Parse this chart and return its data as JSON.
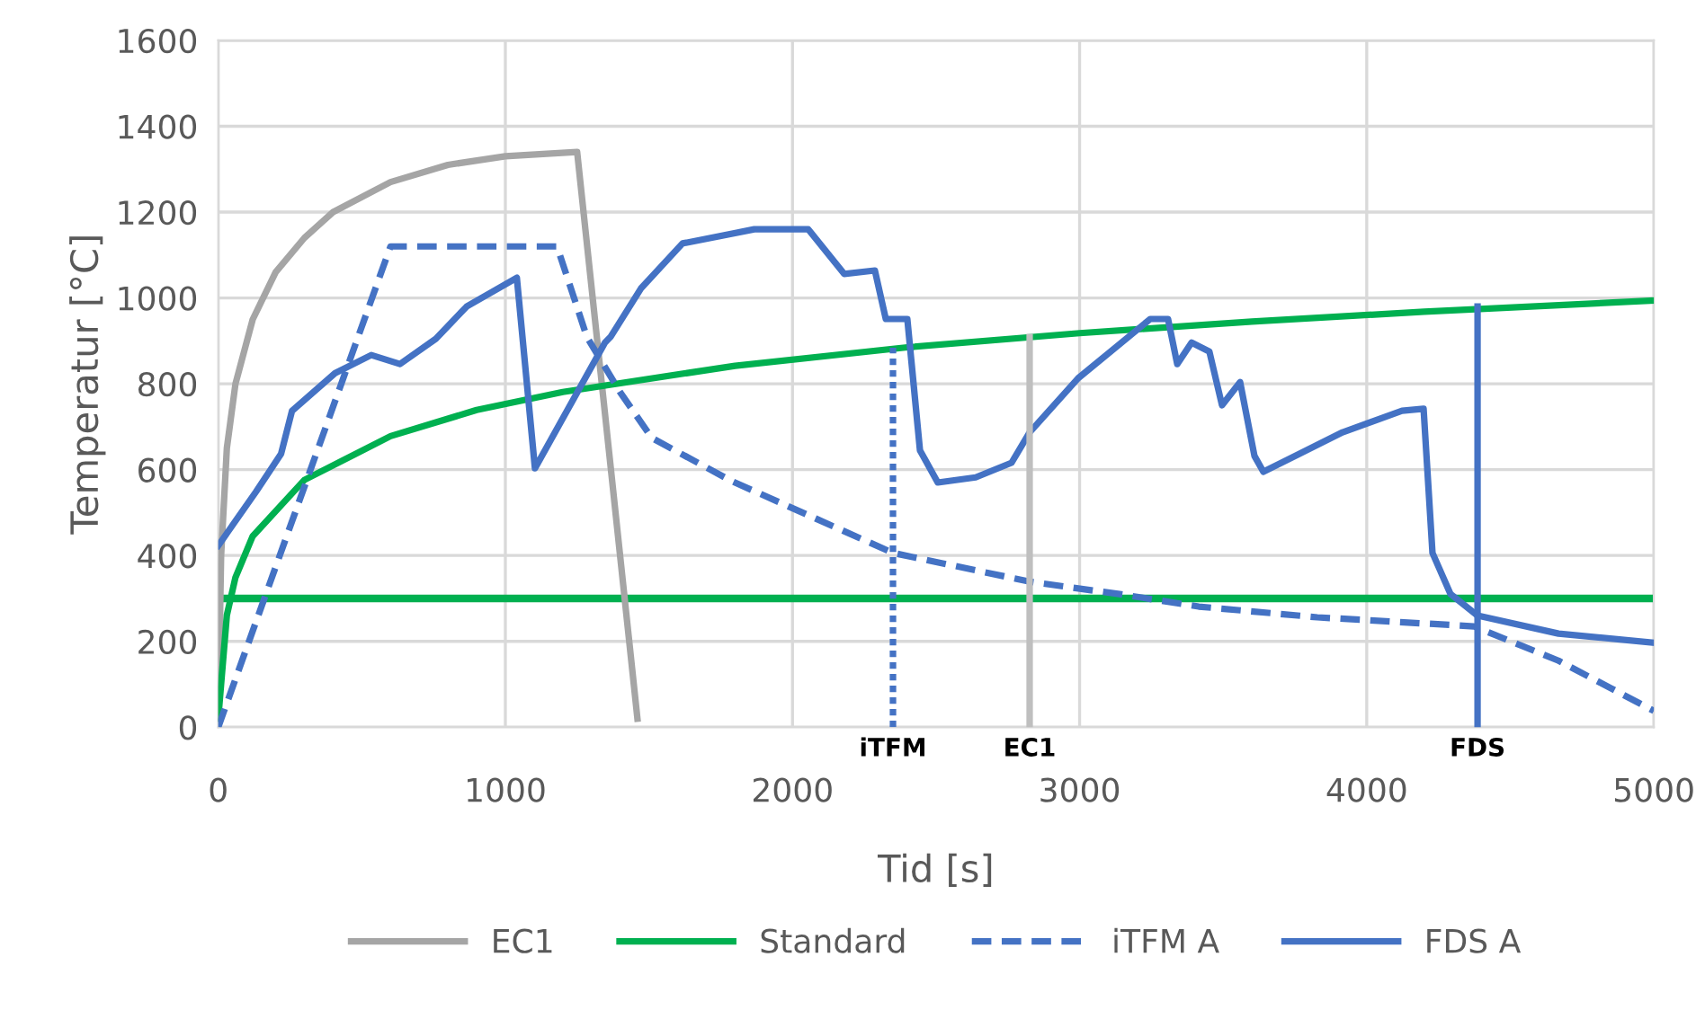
{
  "chart_data": {
    "type": "line",
    "xlabel": "Tid [s]",
    "ylabel": "Temperatur [°C]",
    "xlim": [
      0,
      5000
    ],
    "xticks": [
      0,
      1000,
      2000,
      3000,
      4000,
      5000
    ],
    "ylim": [
      0,
      1600
    ],
    "yticks": [
      0,
      200,
      400,
      600,
      800,
      1000,
      1200,
      1400,
      1600
    ],
    "grid": true,
    "legend": "bottom",
    "marker": "none",
    "series": [
      {
        "name": "EC1",
        "color": "#a5a5a5",
        "line_style": "solid",
        "x": [
          0,
          10,
          30,
          60,
          120,
          200,
          300,
          400,
          600,
          800,
          1000,
          1250,
          1460
        ],
        "values": [
          20,
          400,
          650,
          800,
          950,
          1060,
          1140,
          1200,
          1270,
          1310,
          1330,
          1340,
          20
        ]
      },
      {
        "name": "Standard",
        "color": "#00b050",
        "line_style": "solid",
        "x": [
          0,
          30,
          60,
          120,
          300,
          600,
          900,
          1200,
          1800,
          2400,
          3000,
          3600,
          4200,
          5000
        ],
        "values": [
          20,
          261,
          349,
          445,
          576,
          678,
          739,
          781,
          842,
          885,
          918,
          945,
          968,
          994
        ]
      },
      {
        "name": "iTFM A",
        "color": "#4472c4",
        "line_style": "dashed",
        "x": [
          0,
          600,
          1180,
          1284,
          1400,
          1510,
          1786,
          2350,
          2826,
          3139,
          3415,
          3828,
          4373,
          4668,
          5000
        ],
        "values": [
          0,
          1120,
          1120,
          909,
          780,
          674,
          574,
          406,
          339,
          310,
          281,
          256,
          235,
          155,
          38
        ]
      },
      {
        "name": "FDS A",
        "color": "#4472c4",
        "line_style": "solid",
        "x": [
          0,
          132,
          219,
          257,
          407,
          533,
          633,
          758,
          865,
          1040,
          1103,
          1347,
          1366,
          1472,
          1617,
          1867,
          2055,
          2180,
          2287,
          2325,
          2400,
          2444,
          2506,
          2638,
          2763,
          2826,
          2995,
          3246,
          3308,
          3340,
          3390,
          3452,
          3496,
          3559,
          3609,
          3640,
          3916,
          4123,
          4198,
          4229,
          4292,
          4386,
          4668,
          5000
        ],
        "values": [
          423,
          549,
          637,
          737,
          825,
          867,
          846,
          905,
          980,
          1047,
          603,
          896,
          909,
          1022,
          1127,
          1160,
          1160,
          1056,
          1064,
          951,
          951,
          645,
          570,
          582,
          616,
          687,
          813,
          951,
          951,
          846,
          896,
          875,
          750,
          804,
          632,
          595,
          687,
          737,
          742,
          406,
          310,
          260,
          218,
          197
        ]
      },
      {
        "color": "#4472c4",
        "line_style": "dotted",
        "x": [
          2350,
          2350
        ],
        "values": [
          0,
          884
        ]
      },
      {
        "color": "#bfbfbf",
        "line_style": "solid",
        "x": [
          2826,
          2826
        ],
        "values": [
          0,
          909
        ]
      },
      {
        "color": "#4472c4",
        "line_style": "solid",
        "x": [
          4386,
          4386
        ],
        "values": [
          0,
          980
        ]
      }
    ],
    "ref_lines": [
      {
        "axis": "y",
        "value": 300,
        "color": "#00b050",
        "line_style": "solid"
      }
    ],
    "annotations": [
      {
        "text": "iTFM",
        "x": 2350,
        "y": 0
      },
      {
        "text": "EC1",
        "x": 2826,
        "y": 0
      },
      {
        "text": "FDS",
        "x": 4386,
        "y": 0
      }
    ]
  }
}
